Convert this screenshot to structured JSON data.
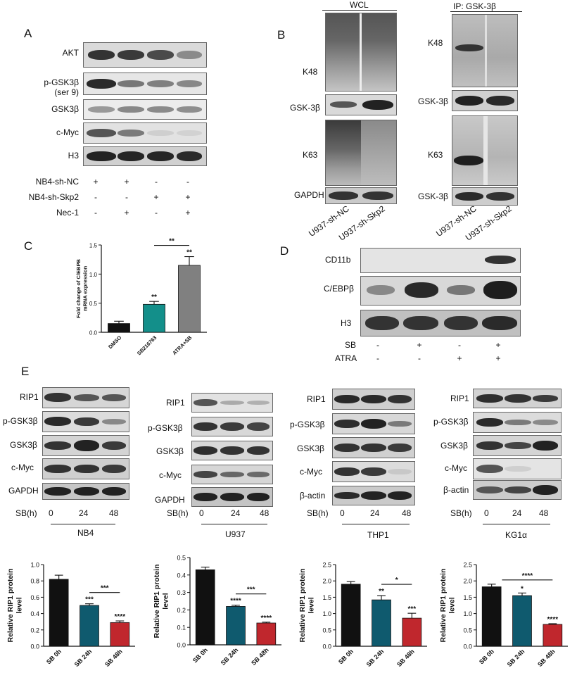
{
  "panelA": {
    "letter": "A",
    "rows": [
      "AKT",
      "p-GSK3β",
      "(ser 9)",
      "GSK3β",
      "c-Myc",
      "H3"
    ],
    "conditions": [
      {
        "label": "NB4-sh-NC",
        "signs": [
          "+",
          "+",
          "-",
          "-"
        ]
      },
      {
        "label": "NB4-sh-Skp2",
        "signs": [
          "-",
          "-",
          "+",
          "+"
        ]
      },
      {
        "label": "Nec-1",
        "signs": [
          "-",
          "+",
          "-",
          "+"
        ]
      }
    ]
  },
  "panelB": {
    "letter": "B",
    "left_header": "WCL",
    "right_header": "IP: GSK-3β",
    "left_rows": [
      "K48",
      "GSK-3β",
      "K63",
      "GAPDH"
    ],
    "right_rows": [
      "K48",
      "GSK-3β",
      "K63",
      "GSK-3β"
    ],
    "lanes": [
      "U937-sh-NC",
      "U937-sh-Skp2"
    ]
  },
  "panelC": {
    "letter": "C"
  },
  "panelD": {
    "letter": "D",
    "rows": [
      "CD11b",
      "C/EBPβ",
      "H3"
    ],
    "conditions": [
      {
        "label": "SB",
        "signs": [
          "-",
          "+",
          "-",
          "+"
        ]
      },
      {
        "label": "ATRA",
        "signs": [
          "-",
          "-",
          "+",
          "+"
        ]
      }
    ]
  },
  "panelE": {
    "letter": "E",
    "sb_label": "SB(h)",
    "timepoints": [
      "0",
      "24",
      "48"
    ],
    "cells": [
      {
        "name": "NB4",
        "rows": [
          "RIP1",
          "p-GSK3β",
          "GSK3β",
          "c-Myc",
          "GAPDH"
        ]
      },
      {
        "name": "U937",
        "rows": [
          "RIP1",
          "p-GSK3β",
          "GSK3β",
          "c-Myc",
          "GAPDH"
        ]
      },
      {
        "name": "THP1",
        "rows": [
          "RIP1",
          "p-GSK3β",
          "GSK3β",
          "c-Myc",
          "β-actin"
        ]
      },
      {
        "name": "KG1α",
        "rows": [
          "RIP1",
          "p-GSK3β",
          "GSK3β",
          "c-Myc",
          "β-actin"
        ]
      }
    ]
  },
  "chart_data": [
    {
      "type": "bar",
      "panel": "C",
      "categories": [
        "DMSO",
        "SB216763",
        "ATRA+SB"
      ],
      "values": [
        0.15,
        0.48,
        1.15
      ],
      "errors": [
        0.04,
        0.05,
        0.15
      ],
      "colors": [
        "#111111",
        "#138f8a",
        "#808080"
      ],
      "ylabel": "Fold change of C/EBPB mRNA expression",
      "ylim": [
        0,
        1.5
      ],
      "yticks": [
        "0.0",
        "0.5",
        "1.0",
        "1.5"
      ],
      "stars": [
        "",
        "**",
        "**"
      ],
      "bracket": {
        "from": 1,
        "to": 2,
        "label": "**"
      }
    },
    {
      "type": "bar",
      "panel": "E-NB4",
      "categories": [
        "SB 0h",
        "SB 24h",
        "SB 48h"
      ],
      "values": [
        0.82,
        0.5,
        0.29
      ],
      "errors": [
        0.05,
        0.02,
        0.02
      ],
      "colors": [
        "#111111",
        "#0f5a6e",
        "#c0272d"
      ],
      "ylabel": "Relative RIP1 protein level",
      "ylim": [
        0,
        1.0
      ],
      "yticks": [
        "0.0",
        "0.2",
        "0.4",
        "0.6",
        "0.8",
        "1.0"
      ],
      "stars": [
        "",
        "***",
        "****"
      ],
      "bracket": {
        "from": 1,
        "to": 2,
        "label": "***"
      }
    },
    {
      "type": "bar",
      "panel": "E-U937",
      "categories": [
        "SB 0h",
        "SB 24h",
        "SB 48h"
      ],
      "values": [
        0.43,
        0.22,
        0.125
      ],
      "errors": [
        0.015,
        0.007,
        0.005
      ],
      "colors": [
        "#111111",
        "#0f5a6e",
        "#c0272d"
      ],
      "ylabel": "Relative RIP1 protein level",
      "ylim": [
        0,
        0.5
      ],
      "yticks": [
        "0.0",
        "0.1",
        "0.2",
        "0.3",
        "0.4",
        "0.5"
      ],
      "stars": [
        "",
        "****",
        "****"
      ],
      "bracket": {
        "from": 1,
        "to": 2,
        "label": "***"
      }
    },
    {
      "type": "bar",
      "panel": "E-THP1",
      "categories": [
        "SB 0h",
        "SB 24h",
        "SB 48h"
      ],
      "values": [
        1.9,
        1.42,
        0.86
      ],
      "errors": [
        0.08,
        0.13,
        0.15
      ],
      "colors": [
        "#111111",
        "#0f5a6e",
        "#c0272d"
      ],
      "ylabel": "Relative RIP1 protein level",
      "ylim": [
        0,
        2.5
      ],
      "yticks": [
        "0.0",
        "0.5",
        "1.0",
        "1.5",
        "2.0",
        "2.5"
      ],
      "stars": [
        "",
        "**",
        "***"
      ],
      "bracket": {
        "from": 1,
        "to": 2,
        "label": "*"
      }
    },
    {
      "type": "bar",
      "panel": "E-KG1α",
      "categories": [
        "SB 0h",
        "SB 24h",
        "SB 48h"
      ],
      "values": [
        1.82,
        1.55,
        0.67
      ],
      "errors": [
        0.08,
        0.08,
        0.02
      ],
      "colors": [
        "#111111",
        "#0f5a6e",
        "#c0272d"
      ],
      "ylabel": "Relative RIP1 protein level",
      "ylim": [
        0,
        2.5
      ],
      "yticks": [
        "0.0",
        "0.5",
        "1.0",
        "1.5",
        "2.0",
        "2.5"
      ],
      "stars": [
        "",
        "*",
        "****"
      ],
      "bracket": {
        "from": 0,
        "to": 2,
        "label": "****"
      }
    }
  ]
}
